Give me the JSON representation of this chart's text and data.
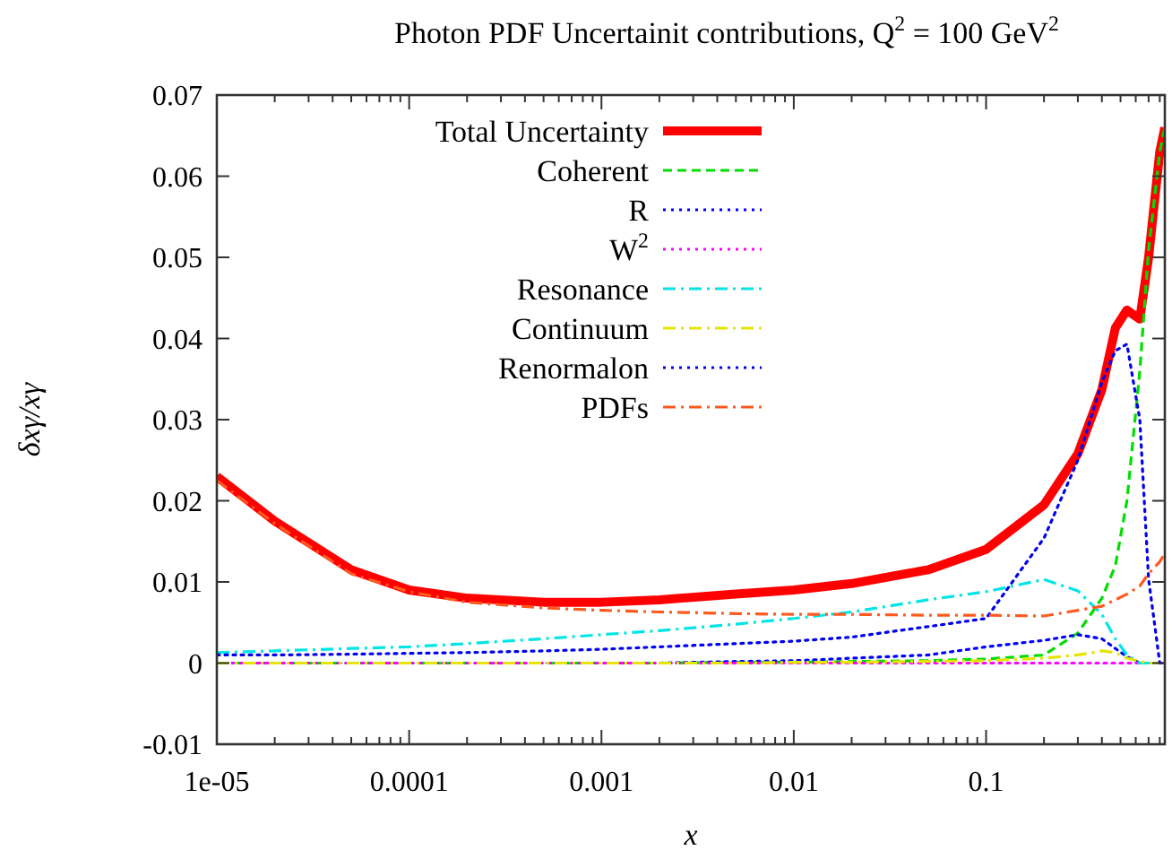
{
  "chart_data": {
    "type": "line",
    "title": "Photon PDF Uncertainit contributions, Q$^{2}$ = 100 GeV$^{2}$",
    "xlabel": "x",
    "ylabel": "δxγ/xγ",
    "log": "x",
    "xlim": [
      1e-05,
      0.85
    ],
    "xticks": [
      {
        "value": 1e-05,
        "label": "1e-05"
      },
      0.0001,
      0.001,
      0.01,
      0.1
    ],
    "ylim": [
      -0.01,
      0.07
    ],
    "yticks": [
      -0.01,
      0,
      0.01,
      0.02,
      0.03,
      0.04,
      0.05,
      0.06,
      0.07
    ],
    "grid": false,
    "legend": "top",
    "marker": "none",
    "x": [
      1e-05,
      2e-05,
      5e-05,
      0.0001,
      0.0002,
      0.0005,
      0.001,
      0.002,
      0.005,
      0.01,
      0.02,
      0.05,
      0.1,
      0.2,
      0.3,
      0.4,
      0.47,
      0.54,
      0.63,
      0.7,
      0.8,
      0.85
    ],
    "series": [
      {
        "name": "Total Uncertainty",
        "color": "#ff0000",
        "line_style": "solid",
        "values": [
          0.023,
          0.0175,
          0.0115,
          0.009,
          0.008,
          0.0075,
          0.0075,
          0.0078,
          0.0085,
          0.009,
          0.0098,
          0.0115,
          0.014,
          0.0195,
          0.0258,
          0.0337,
          0.0413,
          0.0435,
          0.0424,
          0.05,
          0.063,
          0.066
        ]
      },
      {
        "name": "Coherent",
        "color": "#00dd00",
        "line_style": "dashed",
        "values": [
          0,
          0,
          0,
          0,
          0,
          0,
          0,
          0,
          0.0001,
          0.0001,
          0.0002,
          0.0003,
          0.0005,
          0.001,
          0.0037,
          0.008,
          0.012,
          0.02,
          0.036,
          0.051,
          0.063,
          0.066
        ]
      },
      {
        "name": "R",
        "color": "#0000ff",
        "line_style": "dotted",
        "values": [
          0,
          0,
          0,
          0,
          0,
          0,
          0,
          0,
          0.0002,
          0.0003,
          0.0006,
          0.001,
          0.002,
          0.0028,
          0.0035,
          0.003,
          0.0018,
          0.0008,
          0,
          0,
          0,
          0
        ]
      },
      {
        "name": "W$^{2}$",
        "color": "#ff00ff",
        "line_style": "dotted",
        "values": [
          0,
          0,
          0,
          0,
          0,
          0,
          0,
          0,
          0,
          0,
          0,
          0,
          0,
          0,
          0,
          0,
          0,
          0,
          0,
          0,
          0,
          0
        ]
      },
      {
        "name": "Resonance",
        "color": "#00e5e5",
        "line_style": "dashdot",
        "values": [
          0.0013,
          0.0015,
          0.0018,
          0.002,
          0.0024,
          0.003,
          0.0035,
          0.004,
          0.0048,
          0.0055,
          0.0063,
          0.0078,
          0.0088,
          0.0103,
          0.0089,
          0.006,
          0.003,
          0.001,
          0,
          0,
          0,
          0
        ]
      },
      {
        "name": "Continuum",
        "color": "#e5e500",
        "line_style": "dashdot",
        "values": [
          0,
          0,
          0,
          0,
          0,
          0,
          0,
          0,
          0,
          0.0001,
          0.0001,
          0.0002,
          0.0003,
          0.0006,
          0.001,
          0.0015,
          0.0013,
          0.0006,
          0.0002,
          0,
          0,
          0
        ]
      },
      {
        "name": "Renormalon",
        "color": "#0000ee",
        "line_style": "dotted",
        "values": [
          0.001,
          0.001,
          0.0011,
          0.0012,
          0.0013,
          0.0015,
          0.0017,
          0.002,
          0.0024,
          0.0027,
          0.0032,
          0.0045,
          0.0055,
          0.0154,
          0.025,
          0.0346,
          0.0385,
          0.0393,
          0.03,
          0.0103,
          0,
          0
        ]
      },
      {
        "name": "PDFs",
        "color": "#ff5a1e",
        "line_style": "dashdot",
        "values": [
          0.0225,
          0.0172,
          0.011,
          0.0088,
          0.0075,
          0.0068,
          0.0065,
          0.0063,
          0.0061,
          0.006,
          0.006,
          0.0059,
          0.0059,
          0.0058,
          0.0065,
          0.007,
          0.0078,
          0.0085,
          0.0095,
          0.011,
          0.0125,
          0.0135
        ]
      }
    ]
  }
}
